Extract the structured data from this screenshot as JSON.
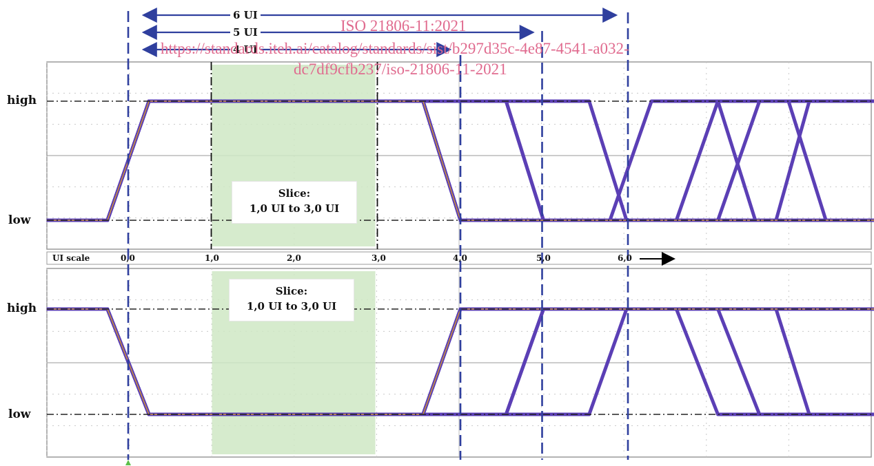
{
  "diagram": {
    "type": "timing-diagram",
    "level_labels": {
      "high": "high",
      "low": "low"
    },
    "interval_arrows": [
      {
        "label": "6 UI",
        "from_ui": 0,
        "to_ui": 6
      },
      {
        "label": "5 UI",
        "from_ui": 0,
        "to_ui": 5
      },
      {
        "label": "4 UI",
        "from_ui": 0,
        "to_ui": 4
      }
    ],
    "scale": {
      "label": "UI scale",
      "ticks": [
        {
          "ui": 0,
          "label": "0,0"
        },
        {
          "ui": 1,
          "label": "1,0"
        },
        {
          "ui": 2,
          "label": "2,0"
        },
        {
          "ui": 3,
          "label": "3,0"
        },
        {
          "ui": 4,
          "label": "4,0"
        },
        {
          "ui": 5,
          "label": "5,0"
        },
        {
          "ui": 6,
          "label": "6,0"
        }
      ]
    },
    "slice": {
      "title": "Slice:",
      "range": "1,0 UI to 3,0 UI",
      "from_ui": 1,
      "to_ui": 3
    },
    "panels": [
      {
        "name": "top",
        "edges_ui": [
          0,
          4,
          5,
          6
        ]
      },
      {
        "name": "bottom",
        "edges_ui": [
          0,
          4,
          5,
          6
        ]
      }
    ],
    "colors": {
      "boundary": "#2f3f9e",
      "trace": "#5b3fb5",
      "slice": "#cfe8c4",
      "watermark": "#e06b8f"
    }
  },
  "watermark": {
    "line1": "ISO 21806-11:2021",
    "line2": "https://standards.iteh.ai/catalog/standards/sist/b297d35c-4e87-4541-a032-",
    "line3": "dc7df9cfb237/iso-21806-11-2021"
  }
}
